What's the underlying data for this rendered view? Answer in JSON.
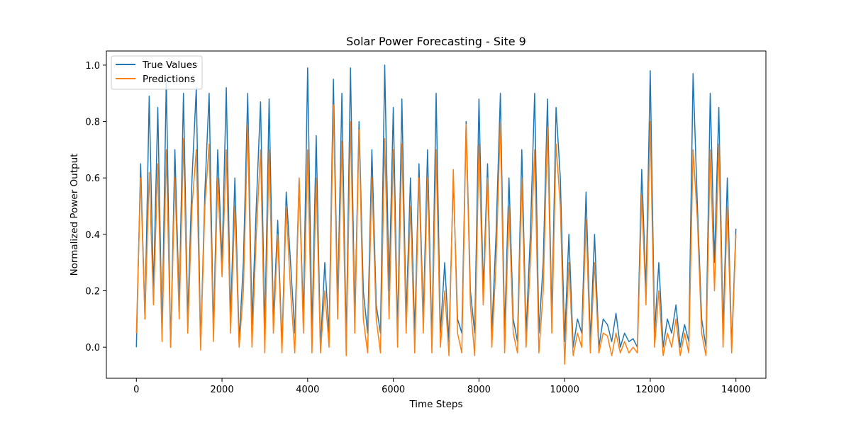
{
  "chart_data": {
    "type": "line",
    "title": "Solar Power Forecasting - Site 9",
    "xlabel": "Time Steps",
    "ylabel": "Normalized Power Output",
    "xlim": [
      -700,
      14700
    ],
    "ylim": [
      -0.11,
      1.05
    ],
    "xticks": [
      0,
      2000,
      4000,
      6000,
      8000,
      10000,
      12000,
      14000
    ],
    "yticks": [
      0.0,
      0.2,
      0.4,
      0.6,
      0.8,
      1.0
    ],
    "ytick_labels": [
      "0.0",
      "0.2",
      "0.4",
      "0.6",
      "0.8",
      "1.0"
    ],
    "grid": false,
    "legend_position": "top-left",
    "series": [
      {
        "name": "True Values",
        "color": "#1f77b4",
        "x": [
          0,
          100,
          200,
          300,
          400,
          500,
          600,
          700,
          800,
          900,
          1000,
          1100,
          1200,
          1300,
          1400,
          1500,
          1600,
          1700,
          1800,
          1900,
          2000,
          2100,
          2200,
          2300,
          2400,
          2500,
          2600,
          2700,
          2800,
          2900,
          3000,
          3100,
          3200,
          3300,
          3400,
          3500,
          3600,
          3700,
          3800,
          3900,
          4000,
          4100,
          4200,
          4300,
          4400,
          4500,
          4600,
          4700,
          4800,
          4900,
          5000,
          5100,
          5200,
          5300,
          5400,
          5500,
          5600,
          5700,
          5800,
          5900,
          6000,
          6100,
          6200,
          6300,
          6400,
          6500,
          6600,
          6700,
          6800,
          6900,
          7000,
          7100,
          7200,
          7300,
          7400,
          7500,
          7600,
          7700,
          7800,
          7900,
          8000,
          8100,
          8200,
          8300,
          8400,
          8500,
          8600,
          8700,
          8800,
          8900,
          9000,
          9100,
          9200,
          9300,
          9400,
          9500,
          9600,
          9700,
          9800,
          9900,
          10000,
          10100,
          10200,
          10300,
          10400,
          10500,
          10600,
          10700,
          10800,
          10900,
          11000,
          11100,
          11200,
          11300,
          11400,
          11500,
          11600,
          11700,
          11800,
          11900,
          12000,
          12100,
          12200,
          12300,
          12400,
          12500,
          12600,
          12700,
          12800,
          12900,
          13000,
          13100,
          13200,
          13300,
          13400,
          13500,
          13600,
          13700,
          13800,
          13900,
          14000
        ],
        "y": [
          0.0,
          0.65,
          0.1,
          0.89,
          0.2,
          0.85,
          0.05,
          0.95,
          0.0,
          0.7,
          0.15,
          0.9,
          0.1,
          0.6,
          0.92,
          0.0,
          0.55,
          0.9,
          0.05,
          0.7,
          0.3,
          0.92,
          0.1,
          0.6,
          0.02,
          0.3,
          0.9,
          0.08,
          0.5,
          0.87,
          0.05,
          0.88,
          0.1,
          0.45,
          0.0,
          0.55,
          0.3,
          0.05,
          0.6,
          0.1,
          0.99,
          0.05,
          0.75,
          0.0,
          0.3,
          0.05,
          0.95,
          0.15,
          0.9,
          0.02,
          0.99,
          0.1,
          0.8,
          0.2,
          0.05,
          0.7,
          0.15,
          0.05,
          1.0,
          0.2,
          0.85,
          0.05,
          0.88,
          0.1,
          0.6,
          0.05,
          0.65,
          0.1,
          0.7,
          0.02,
          0.9,
          0.05,
          0.3,
          0.02,
          0.6,
          0.1,
          0.05,
          0.8,
          0.2,
          0.05,
          0.88,
          0.2,
          0.65,
          0.05,
          0.4,
          0.9,
          0.05,
          0.6,
          0.1,
          0.02,
          0.7,
          0.05,
          0.4,
          0.9,
          0.05,
          0.3,
          0.88,
          0.1,
          0.85,
          0.6,
          0.02,
          0.4,
          0.0,
          0.1,
          0.05,
          0.55,
          0.02,
          0.4,
          0.0,
          0.1,
          0.08,
          0.02,
          0.12,
          0.0,
          0.05,
          0.02,
          0.03,
          0.0,
          0.63,
          0.2,
          0.98,
          0.05,
          0.3,
          0.0,
          0.1,
          0.05,
          0.15,
          0.0,
          0.08,
          0.02,
          0.97,
          0.5,
          0.1,
          0.0,
          0.9,
          0.3,
          0.85,
          0.05,
          0.6,
          0.0,
          0.42
        ]
      },
      {
        "name": "Predictions",
        "color": "#ff7f0e",
        "x": [
          0,
          100,
          200,
          300,
          400,
          500,
          600,
          700,
          800,
          900,
          1000,
          1100,
          1200,
          1300,
          1400,
          1500,
          1600,
          1700,
          1800,
          1900,
          2000,
          2100,
          2200,
          2300,
          2400,
          2500,
          2600,
          2700,
          2800,
          2900,
          3000,
          3100,
          3200,
          3300,
          3400,
          3500,
          3600,
          3700,
          3800,
          3900,
          4000,
          4100,
          4200,
          4300,
          4400,
          4500,
          4600,
          4700,
          4800,
          4900,
          5000,
          5100,
          5200,
          5300,
          5400,
          5500,
          5600,
          5700,
          5800,
          5900,
          6000,
          6100,
          6200,
          6300,
          6400,
          6500,
          6600,
          6700,
          6800,
          6900,
          7000,
          7100,
          7200,
          7300,
          7400,
          7500,
          7600,
          7700,
          7800,
          7900,
          8000,
          8100,
          8200,
          8300,
          8400,
          8500,
          8600,
          8700,
          8800,
          8900,
          9000,
          9100,
          9200,
          9300,
          9400,
          9500,
          9600,
          9700,
          9800,
          9900,
          10000,
          10100,
          10200,
          10300,
          10400,
          10500,
          10600,
          10700,
          10800,
          10900,
          11000,
          11100,
          11200,
          11300,
          11400,
          11500,
          11600,
          11700,
          11800,
          11900,
          12000,
          12100,
          12200,
          12300,
          12400,
          12500,
          12600,
          12700,
          12800,
          12900,
          13000,
          13100,
          13200,
          13300,
          13400,
          13500,
          13600,
          13700,
          13800,
          13900,
          14000
        ],
        "y": [
          0.05,
          0.6,
          0.1,
          0.62,
          0.15,
          0.65,
          0.02,
          0.7,
          0.0,
          0.6,
          0.1,
          0.74,
          0.05,
          0.5,
          0.7,
          -0.01,
          0.5,
          0.72,
          0.02,
          0.6,
          0.25,
          0.7,
          0.05,
          0.5,
          0.0,
          0.2,
          0.79,
          0.0,
          0.4,
          0.7,
          -0.02,
          0.7,
          0.05,
          0.4,
          -0.02,
          0.5,
          0.2,
          -0.02,
          0.6,
          0.05,
          0.7,
          -0.02,
          0.6,
          -0.02,
          0.2,
          0.0,
          0.86,
          0.1,
          0.73,
          -0.03,
          0.8,
          0.05,
          0.77,
          0.1,
          -0.02,
          0.6,
          0.1,
          -0.02,
          0.74,
          0.1,
          0.7,
          0.0,
          0.72,
          0.05,
          0.5,
          -0.02,
          0.6,
          0.05,
          0.6,
          -0.02,
          0.7,
          0.0,
          0.2,
          -0.03,
          0.63,
          0.05,
          -0.02,
          0.79,
          0.15,
          -0.03,
          0.72,
          0.15,
          0.6,
          0.0,
          0.3,
          0.8,
          -0.02,
          0.5,
          0.05,
          -0.02,
          0.6,
          0.0,
          0.3,
          0.7,
          -0.02,
          0.2,
          0.78,
          0.05,
          0.72,
          0.5,
          -0.06,
          0.3,
          -0.03,
          0.05,
          0.0,
          0.45,
          -0.02,
          0.3,
          -0.02,
          0.05,
          0.04,
          -0.03,
          0.05,
          -0.02,
          0.02,
          -0.02,
          0.0,
          -0.02,
          0.54,
          0.15,
          0.8,
          0.0,
          0.2,
          -0.03,
          0.05,
          0.0,
          0.1,
          -0.03,
          0.05,
          -0.02,
          0.7,
          0.45,
          0.05,
          -0.03,
          0.7,
          0.2,
          0.72,
          0.0,
          0.5,
          -0.02,
          0.4
        ]
      }
    ]
  }
}
